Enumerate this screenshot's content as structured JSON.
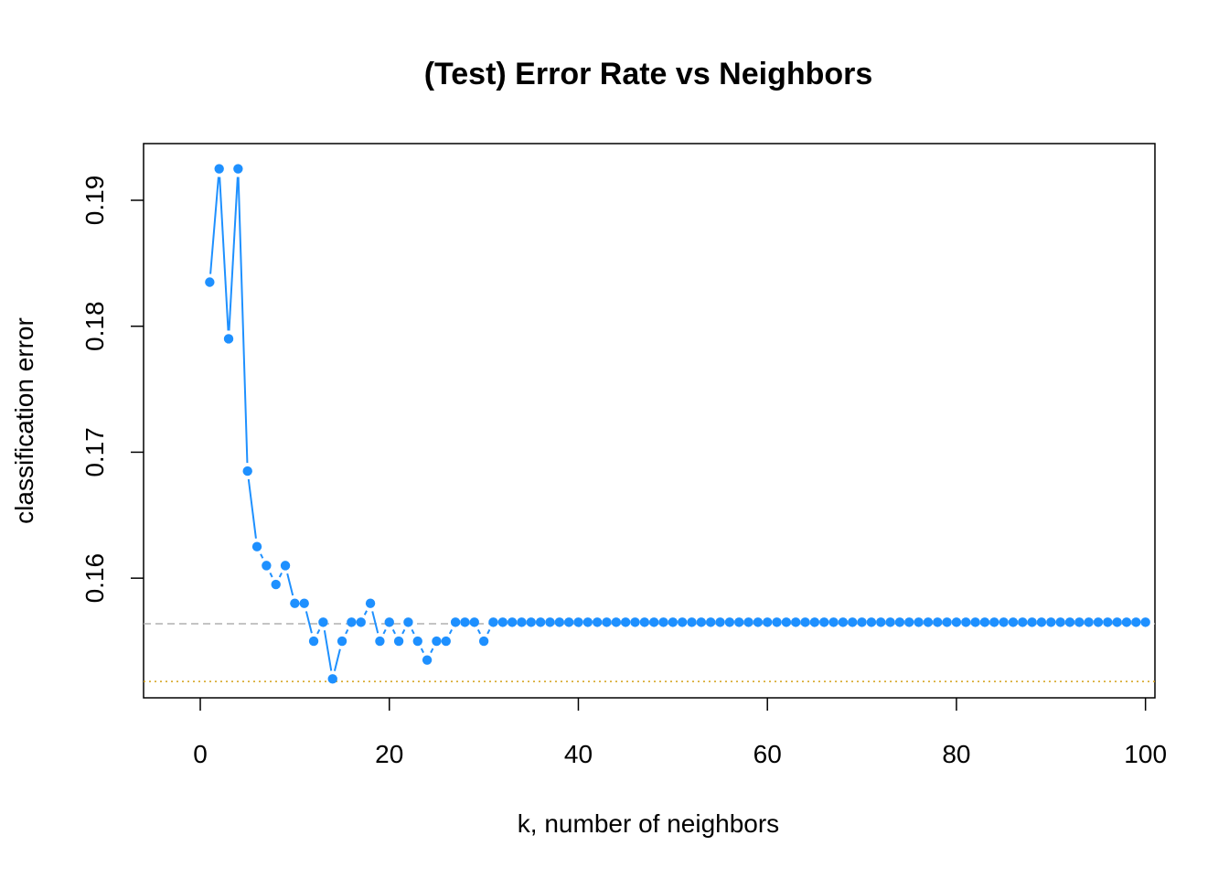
{
  "chart_data": {
    "type": "line",
    "title": "(Test) Error Rate vs Neighbors",
    "xlabel": "k, number of neighbors",
    "ylabel": "classification error",
    "xlim": [
      -6,
      101
    ],
    "ylim": [
      0.1505,
      0.1945
    ],
    "x_ticks": [
      0,
      20,
      40,
      60,
      80,
      100
    ],
    "x_tick_labels": [
      "0",
      "20",
      "40",
      "60",
      "80",
      "100"
    ],
    "y_ticks": [
      0.16,
      0.17,
      0.18,
      0.19
    ],
    "y_tick_labels": [
      "0.16",
      "0.17",
      "0.18",
      "0.19"
    ],
    "grid": false,
    "series_color": "#1E90FF",
    "reference_lines": [
      {
        "style": "dashed",
        "color": "#B0B0B0",
        "y": 0.15638
      },
      {
        "style": "dotted",
        "color": "#D4A017",
        "y": 0.1518
      }
    ],
    "series": [
      {
        "x": [
          1,
          2,
          3,
          4,
          5,
          6,
          7,
          8,
          9,
          10,
          11,
          12,
          13,
          14,
          15,
          16,
          17,
          18,
          19,
          20,
          21,
          22,
          23,
          24,
          25,
          26,
          27,
          28,
          29,
          30,
          31,
          32,
          33,
          34,
          35,
          36,
          37,
          38,
          39,
          40,
          41,
          42,
          43,
          44,
          45,
          46,
          47,
          48,
          49,
          50,
          51,
          52,
          53,
          54,
          55,
          56,
          57,
          58,
          59,
          60,
          61,
          62,
          63,
          64,
          65,
          66,
          67,
          68,
          69,
          70,
          71,
          72,
          73,
          74,
          75,
          76,
          77,
          78,
          79,
          80,
          81,
          82,
          83,
          84,
          85,
          86,
          87,
          88,
          89,
          90,
          91,
          92,
          93,
          94,
          95,
          96,
          97,
          98,
          99,
          100
        ],
        "values": [
          0.1835,
          0.1925,
          0.179,
          0.1925,
          0.1685,
          0.1625,
          0.161,
          0.1595,
          0.161,
          0.158,
          0.158,
          0.155,
          0.1565,
          0.152,
          0.155,
          0.1565,
          0.1565,
          0.158,
          0.155,
          0.1565,
          0.155,
          0.1565,
          0.155,
          0.1535,
          0.155,
          0.155,
          0.1565,
          0.1565,
          0.1565,
          0.155,
          0.1565,
          0.1565,
          0.1565,
          0.1565,
          0.1565,
          0.1565,
          0.1565,
          0.1565,
          0.1565,
          0.1565,
          0.1565,
          0.1565,
          0.1565,
          0.1565,
          0.1565,
          0.1565,
          0.1565,
          0.1565,
          0.1565,
          0.1565,
          0.1565,
          0.1565,
          0.1565,
          0.1565,
          0.1565,
          0.1565,
          0.1565,
          0.1565,
          0.1565,
          0.1565,
          0.1565,
          0.1565,
          0.1565,
          0.1565,
          0.1565,
          0.1565,
          0.1565,
          0.1565,
          0.1565,
          0.1565,
          0.1565,
          0.1565,
          0.1565,
          0.1565,
          0.1565,
          0.1565,
          0.1565,
          0.1565,
          0.1565,
          0.1565,
          0.1565,
          0.1565,
          0.1565,
          0.1565,
          0.1565,
          0.1565,
          0.1565,
          0.1565,
          0.1565,
          0.1565,
          0.1565,
          0.1565,
          0.1565,
          0.1565,
          0.1565,
          0.1565,
          0.1565,
          0.1565,
          0.1565,
          0.1565
        ]
      }
    ]
  }
}
